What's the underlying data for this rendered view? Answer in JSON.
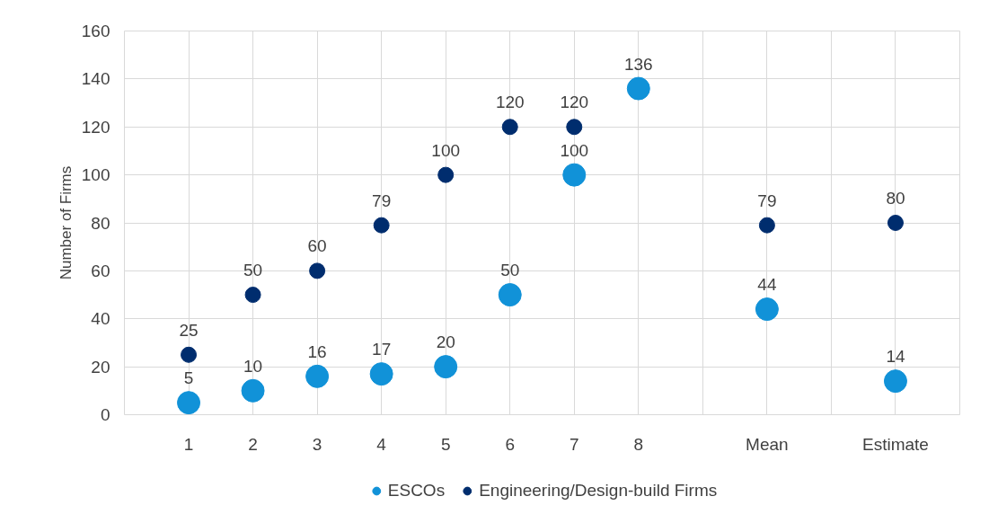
{
  "chart_data": {
    "type": "scatter",
    "ylabel": "Number of Firms",
    "x": [
      1,
      2,
      3,
      4,
      5,
      6,
      7,
      8,
      10,
      12
    ],
    "series": [
      {
        "name": "ESCOs",
        "color": "#1192d8",
        "values": [
          5,
          10,
          16,
          17,
          20,
          50,
          100,
          136,
          44,
          14
        ]
      },
      {
        "name": "Engineering/Design-build Firms",
        "color": "#002d6e",
        "values": [
          25,
          50,
          60,
          79,
          100,
          120,
          120,
          null,
          79,
          80
        ]
      }
    ],
    "xlim": [
      0,
      13
    ],
    "xticks": [
      1,
      2,
      3,
      4,
      5,
      6,
      7,
      8,
      {
        "value": 9,
        "label": null
      },
      {
        "value": 10,
        "label": "Mean"
      },
      {
        "value": 11,
        "label": null
      },
      {
        "value": 12,
        "label": "Estimate"
      }
    ],
    "ylim": [
      0,
      160
    ],
    "yticks": [
      0,
      20,
      40,
      60,
      80,
      100,
      120,
      140,
      160
    ],
    "grid": true,
    "legend": "bottom",
    "marker": "circle",
    "data_labels": true
  }
}
